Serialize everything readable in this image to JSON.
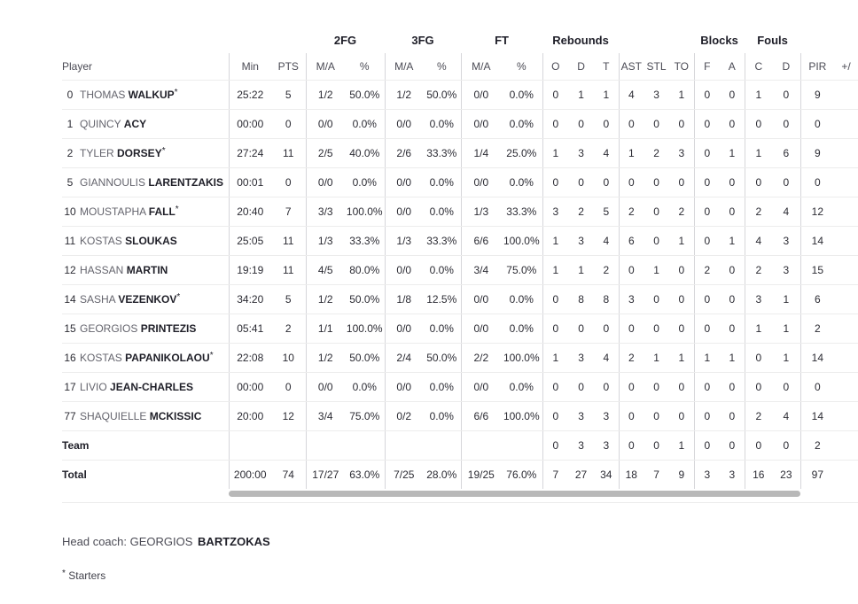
{
  "table": {
    "group_headers": {
      "fg2": "2FG",
      "fg3": "3FG",
      "ft": "FT",
      "rebounds": "Rebounds",
      "blocks": "Blocks",
      "fouls": "Fouls"
    },
    "column_headers": {
      "player": "Player",
      "min": "Min",
      "pts": "PTS",
      "ma": "M/A",
      "pct": "%",
      "reb_o": "O",
      "reb_d": "D",
      "reb_t": "T",
      "ast": "AST",
      "stl": "STL",
      "to": "TO",
      "blk_f": "F",
      "blk_a": "A",
      "foul_c": "C",
      "foul_d": "D",
      "pir": "PIR",
      "plus_minus": "+/"
    },
    "rows": [
      {
        "number": "0",
        "first": "THOMAS",
        "last": "WALKUP",
        "starter": true,
        "min": "25:22",
        "pts": "5",
        "fg2_ma": "1/2",
        "fg2_pct": "50.0%",
        "fg3_ma": "1/2",
        "fg3_pct": "50.0%",
        "ft_ma": "0/0",
        "ft_pct": "0.0%",
        "reb_o": "0",
        "reb_d": "1",
        "reb_t": "1",
        "ast": "4",
        "stl": "3",
        "to": "1",
        "blk_f": "0",
        "blk_a": "0",
        "foul_c": "1",
        "foul_d": "0",
        "pir": "9"
      },
      {
        "number": "1",
        "first": "QUINCY",
        "last": "ACY",
        "starter": false,
        "min": "00:00",
        "pts": "0",
        "fg2_ma": "0/0",
        "fg2_pct": "0.0%",
        "fg3_ma": "0/0",
        "fg3_pct": "0.0%",
        "ft_ma": "0/0",
        "ft_pct": "0.0%",
        "reb_o": "0",
        "reb_d": "0",
        "reb_t": "0",
        "ast": "0",
        "stl": "0",
        "to": "0",
        "blk_f": "0",
        "blk_a": "0",
        "foul_c": "0",
        "foul_d": "0",
        "pir": "0"
      },
      {
        "number": "2",
        "first": "TYLER",
        "last": "DORSEY",
        "starter": true,
        "min": "27:24",
        "pts": "11",
        "fg2_ma": "2/5",
        "fg2_pct": "40.0%",
        "fg3_ma": "2/6",
        "fg3_pct": "33.3%",
        "ft_ma": "1/4",
        "ft_pct": "25.0%",
        "reb_o": "1",
        "reb_d": "3",
        "reb_t": "4",
        "ast": "1",
        "stl": "2",
        "to": "3",
        "blk_f": "0",
        "blk_a": "1",
        "foul_c": "1",
        "foul_d": "6",
        "pir": "9"
      },
      {
        "number": "5",
        "first": "GIANNOULIS",
        "last": "LARENTZAKIS",
        "starter": false,
        "min": "00:01",
        "pts": "0",
        "fg2_ma": "0/0",
        "fg2_pct": "0.0%",
        "fg3_ma": "0/0",
        "fg3_pct": "0.0%",
        "ft_ma": "0/0",
        "ft_pct": "0.0%",
        "reb_o": "0",
        "reb_d": "0",
        "reb_t": "0",
        "ast": "0",
        "stl": "0",
        "to": "0",
        "blk_f": "0",
        "blk_a": "0",
        "foul_c": "0",
        "foul_d": "0",
        "pir": "0"
      },
      {
        "number": "10",
        "first": "MOUSTAPHA",
        "last": "FALL",
        "starter": true,
        "min": "20:40",
        "pts": "7",
        "fg2_ma": "3/3",
        "fg2_pct": "100.0%",
        "fg3_ma": "0/0",
        "fg3_pct": "0.0%",
        "ft_ma": "1/3",
        "ft_pct": "33.3%",
        "reb_o": "3",
        "reb_d": "2",
        "reb_t": "5",
        "ast": "2",
        "stl": "0",
        "to": "2",
        "blk_f": "0",
        "blk_a": "0",
        "foul_c": "2",
        "foul_d": "4",
        "pir": "12"
      },
      {
        "number": "11",
        "first": "KOSTAS",
        "last": "SLOUKAS",
        "starter": false,
        "min": "25:05",
        "pts": "11",
        "fg2_ma": "1/3",
        "fg2_pct": "33.3%",
        "fg3_ma": "1/3",
        "fg3_pct": "33.3%",
        "ft_ma": "6/6",
        "ft_pct": "100.0%",
        "reb_o": "1",
        "reb_d": "3",
        "reb_t": "4",
        "ast": "6",
        "stl": "0",
        "to": "1",
        "blk_f": "0",
        "blk_a": "1",
        "foul_c": "4",
        "foul_d": "3",
        "pir": "14"
      },
      {
        "number": "12",
        "first": "HASSAN",
        "last": "MARTIN",
        "starter": false,
        "min": "19:19",
        "pts": "11",
        "fg2_ma": "4/5",
        "fg2_pct": "80.0%",
        "fg3_ma": "0/0",
        "fg3_pct": "0.0%",
        "ft_ma": "3/4",
        "ft_pct": "75.0%",
        "reb_o": "1",
        "reb_d": "1",
        "reb_t": "2",
        "ast": "0",
        "stl": "1",
        "to": "0",
        "blk_f": "2",
        "blk_a": "0",
        "foul_c": "2",
        "foul_d": "3",
        "pir": "15"
      },
      {
        "number": "14",
        "first": "SASHA",
        "last": "VEZENKOV",
        "starter": true,
        "min": "34:20",
        "pts": "5",
        "fg2_ma": "1/2",
        "fg2_pct": "50.0%",
        "fg3_ma": "1/8",
        "fg3_pct": "12.5%",
        "ft_ma": "0/0",
        "ft_pct": "0.0%",
        "reb_o": "0",
        "reb_d": "8",
        "reb_t": "8",
        "ast": "3",
        "stl": "0",
        "to": "0",
        "blk_f": "0",
        "blk_a": "0",
        "foul_c": "3",
        "foul_d": "1",
        "pir": "6"
      },
      {
        "number": "15",
        "first": "GEORGIOS",
        "last": "PRINTEZIS",
        "starter": false,
        "min": "05:41",
        "pts": "2",
        "fg2_ma": "1/1",
        "fg2_pct": "100.0%",
        "fg3_ma": "0/0",
        "fg3_pct": "0.0%",
        "ft_ma": "0/0",
        "ft_pct": "0.0%",
        "reb_o": "0",
        "reb_d": "0",
        "reb_t": "0",
        "ast": "0",
        "stl": "0",
        "to": "0",
        "blk_f": "0",
        "blk_a": "0",
        "foul_c": "1",
        "foul_d": "1",
        "pir": "2"
      },
      {
        "number": "16",
        "first": "KOSTAS",
        "last": "PAPANIKOLAOU",
        "starter": true,
        "min": "22:08",
        "pts": "10",
        "fg2_ma": "1/2",
        "fg2_pct": "50.0%",
        "fg3_ma": "2/4",
        "fg3_pct": "50.0%",
        "ft_ma": "2/2",
        "ft_pct": "100.0%",
        "reb_o": "1",
        "reb_d": "3",
        "reb_t": "4",
        "ast": "2",
        "stl": "1",
        "to": "1",
        "blk_f": "1",
        "blk_a": "1",
        "foul_c": "0",
        "foul_d": "1",
        "pir": "14"
      },
      {
        "number": "17",
        "first": "LIVIO",
        "last": "JEAN-CHARLES",
        "starter": false,
        "min": "00:00",
        "pts": "0",
        "fg2_ma": "0/0",
        "fg2_pct": "0.0%",
        "fg3_ma": "0/0",
        "fg3_pct": "0.0%",
        "ft_ma": "0/0",
        "ft_pct": "0.0%",
        "reb_o": "0",
        "reb_d": "0",
        "reb_t": "0",
        "ast": "0",
        "stl": "0",
        "to": "0",
        "blk_f": "0",
        "blk_a": "0",
        "foul_c": "0",
        "foul_d": "0",
        "pir": "0"
      },
      {
        "number": "77",
        "first": "SHAQUIELLE",
        "last": "MCKISSIC",
        "starter": false,
        "min": "20:00",
        "pts": "12",
        "fg2_ma": "3/4",
        "fg2_pct": "75.0%",
        "fg3_ma": "0/2",
        "fg3_pct": "0.0%",
        "ft_ma": "6/6",
        "ft_pct": "100.0%",
        "reb_o": "0",
        "reb_d": "3",
        "reb_t": "3",
        "ast": "0",
        "stl": "0",
        "to": "0",
        "blk_f": "0",
        "blk_a": "0",
        "foul_c": "2",
        "foul_d": "4",
        "pir": "14"
      },
      {
        "label": "Team",
        "min": "",
        "pts": "",
        "fg2_ma": "",
        "fg2_pct": "",
        "fg3_ma": "",
        "fg3_pct": "",
        "ft_ma": "",
        "ft_pct": "",
        "reb_o": "0",
        "reb_d": "3",
        "reb_t": "3",
        "ast": "0",
        "stl": "0",
        "to": "1",
        "blk_f": "0",
        "blk_a": "0",
        "foul_c": "0",
        "foul_d": "0",
        "pir": "2"
      },
      {
        "label": "Total",
        "min": "200:00",
        "pts": "74",
        "fg2_ma": "17/27",
        "fg2_pct": "63.0%",
        "fg3_ma": "7/25",
        "fg3_pct": "28.0%",
        "ft_ma": "19/25",
        "ft_pct": "76.0%",
        "reb_o": "7",
        "reb_d": "27",
        "reb_t": "34",
        "ast": "18",
        "stl": "7",
        "to": "9",
        "blk_f": "3",
        "blk_a": "3",
        "foul_c": "16",
        "foul_d": "23",
        "pir": "97"
      }
    ],
    "starter_mark": "*"
  },
  "footer": {
    "head_coach_label": "Head coach:",
    "head_coach_first": "GEORGIOS",
    "head_coach_last": "BARTZOKAS",
    "starters_note_mark": "*",
    "starters_note_text": "Starters"
  },
  "colors": {
    "text_dark": "#1f1f28",
    "text_gray": "#64646d",
    "grid_line": "#d6d6da",
    "row_line": "#ececec",
    "scrollbar": "#b8b8b8"
  }
}
